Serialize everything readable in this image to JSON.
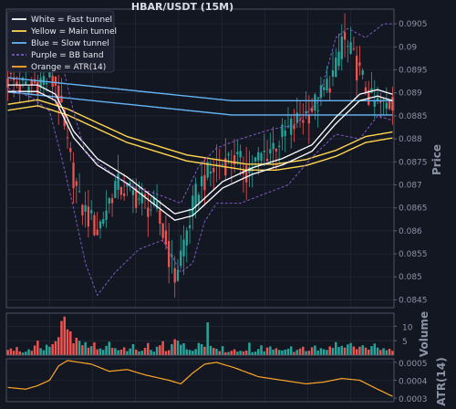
{
  "title": "HBAR/USDT (15M)",
  "colors": {
    "background": "#131722",
    "grid": "#262c3b",
    "axis": "#5a6172",
    "up": "#26a69a",
    "down": "#ef5350",
    "fast": "#ffffff",
    "main": "#ffd54f",
    "slow": "#64b5f6",
    "bb": "#7e57c2",
    "atr": "#ffa726"
  },
  "legend": [
    {
      "label": "White = Fast tunnel",
      "color": "#ffffff",
      "style": "solid"
    },
    {
      "label": "Yellow = Main tunnel",
      "color": "#ffd54f",
      "style": "solid"
    },
    {
      "label": "Blue = Slow tunnel",
      "color": "#64b5f6",
      "style": "solid"
    },
    {
      "label": "Purple = BB band",
      "color": "#7e57c2",
      "style": "dashed"
    },
    {
      "label": "Orange = ATR(14)",
      "color": "#ffa726",
      "style": "solid"
    }
  ],
  "chart_data": [
    {
      "type": "line",
      "subtype": "candlestick",
      "title": "HBAR/USDT (15M)",
      "ylabel": "Price",
      "ylim": [
        0.08435,
        0.09065
      ],
      "yticks": [
        0.0845,
        0.085,
        0.0855,
        0.086,
        0.0865,
        0.087,
        0.0875,
        0.088,
        0.0885,
        0.089,
        0.0895,
        0.09,
        0.0905
      ],
      "grid": true,
      "legend_position": "top-left",
      "n_bars": 130,
      "price_path": [
        [
          0,
          0.0893
        ],
        [
          6,
          0.0891
        ],
        [
          12,
          0.0893
        ],
        [
          16,
          0.0892
        ],
        [
          20,
          0.0878
        ],
        [
          24,
          0.0866
        ],
        [
          30,
          0.086
        ],
        [
          36,
          0.087
        ],
        [
          42,
          0.0868
        ],
        [
          50,
          0.0864
        ],
        [
          56,
          0.085
        ],
        [
          60,
          0.086
        ],
        [
          64,
          0.087
        ],
        [
          70,
          0.0874
        ],
        [
          76,
          0.0876
        ],
        [
          80,
          0.0873
        ],
        [
          88,
          0.0878
        ],
        [
          96,
          0.0883
        ],
        [
          104,
          0.0888
        ],
        [
          110,
          0.0895
        ],
        [
          112,
          0.0902
        ],
        [
          116,
          0.0897
        ],
        [
          122,
          0.0888
        ],
        [
          126,
          0.0887
        ],
        [
          129,
          0.0888
        ]
      ],
      "series": [
        {
          "name": "White = Fast tunnel",
          "values": [
            [
              0,
              0.0891
            ],
            [
              10,
              0.0891
            ],
            [
              16,
              0.0889
            ],
            [
              22,
              0.0881
            ],
            [
              30,
              0.0875
            ],
            [
              40,
              0.0871
            ],
            [
              50,
              0.0866
            ],
            [
              56,
              0.0863
            ],
            [
              62,
              0.0864
            ],
            [
              72,
              0.087
            ],
            [
              82,
              0.0873
            ],
            [
              92,
              0.0875
            ],
            [
              102,
              0.0878
            ],
            [
              110,
              0.0884
            ],
            [
              118,
              0.0889
            ],
            [
              124,
              0.089
            ],
            [
              129,
              0.0889
            ]
          ]
        },
        {
          "name": "Yellow = Main tunnel",
          "values": [
            [
              0,
              0.0887
            ],
            [
              10,
              0.0888
            ],
            [
              20,
              0.0886
            ],
            [
              30,
              0.0883
            ],
            [
              40,
              0.088
            ],
            [
              50,
              0.0878
            ],
            [
              60,
              0.0876
            ],
            [
              70,
              0.0875
            ],
            [
              80,
              0.0874
            ],
            [
              90,
              0.0874
            ],
            [
              100,
              0.0875
            ],
            [
              110,
              0.0877
            ],
            [
              120,
              0.088
            ],
            [
              129,
              0.0881
            ]
          ]
        },
        {
          "name": "Blue = Slow tunnel",
          "values": [
            [
              0,
              0.0893
            ],
            [
              15,
              0.0892
            ],
            [
              30,
              0.0891
            ],
            [
              45,
              0.089
            ],
            [
              60,
              0.0889
            ],
            [
              75,
              0.0888
            ],
            [
              90,
              0.0888
            ],
            [
              105,
              0.0888
            ],
            [
              120,
              0.0888
            ],
            [
              129,
              0.0888
            ]
          ]
        },
        {
          "name": "Purple = BB band",
          "values": [
            [
              0,
              0.0895
            ],
            [
              12,
              0.0896
            ],
            [
              18,
              0.0897
            ],
            [
              22,
              0.0886
            ],
            [
              26,
              0.0877
            ],
            [
              32,
              0.0874
            ],
            [
              40,
              0.087
            ],
            [
              50,
              0.0868
            ],
            [
              58,
              0.0866
            ],
            [
              64,
              0.0874
            ],
            [
              70,
              0.0878
            ],
            [
              78,
              0.088
            ],
            [
              88,
              0.0882
            ],
            [
              96,
              0.0883
            ],
            [
              104,
              0.0888
            ],
            [
              110,
              0.0902
            ],
            [
              114,
              0.0904
            ],
            [
              120,
              0.0902
            ],
            [
              126,
              0.0905
            ],
            [
              129,
              0.0905
            ]
          ]
        },
        {
          "name": "Purple = BB band (lower)",
          "values": [
            [
              0,
              0.0891
            ],
            [
              8,
              0.0889
            ],
            [
              14,
              0.0886
            ],
            [
              18,
              0.0876
            ],
            [
              22,
              0.0865
            ],
            [
              26,
              0.0853
            ],
            [
              30,
              0.0846
            ],
            [
              36,
              0.0851
            ],
            [
              44,
              0.0856
            ],
            [
              52,
              0.0858
            ],
            [
              58,
              0.0851
            ],
            [
              62,
              0.0853
            ],
            [
              66,
              0.0862
            ],
            [
              70,
              0.0866
            ],
            [
              78,
              0.0866
            ],
            [
              86,
              0.0868
            ],
            [
              94,
              0.087
            ],
            [
              102,
              0.0876
            ],
            [
              110,
              0.0881
            ],
            [
              118,
              0.088
            ],
            [
              124,
              0.0885
            ],
            [
              129,
              0.0884
            ]
          ]
        }
      ]
    },
    {
      "type": "bar",
      "ylabel": "Volume",
      "yticks": [
        5,
        10
      ],
      "grid": true,
      "values": [
        1.8,
        2.3,
        1.5,
        2.8,
        1.3,
        0.9,
        1.2,
        2.0,
        1.5,
        3.3,
        5.0,
        2.4,
        1.7,
        3.6,
        2.9,
        3.8,
        4.8,
        6.2,
        11.8,
        13.3,
        8.9,
        8.2,
        4.1,
        6.0,
        4.9,
        3.4,
        4.5,
        2.6,
        3.1,
        4.4,
        2.0,
        2.3,
        1.8,
        3.2,
        4.6,
        2.5,
        2.4,
        1.7,
        1.9,
        2.7,
        1.4,
        2.3,
        3.8,
        1.9,
        1.3,
        1.5,
        2.5,
        4.2,
        1.8,
        1.2,
        2.9,
        3.4,
        4.8,
        1.4,
        1.7,
        3.8,
        5.5,
        5.0,
        3.6,
        4.1,
        2.0,
        1.8,
        1.5,
        2.1,
        4.2,
        3.8,
        2.9,
        11.3,
        3.2,
        2.5,
        2.2,
        1.4,
        3.1,
        1.0,
        1.1,
        1.5,
        2.0,
        1.2,
        1.5,
        1.3,
        1.6,
        4.3,
        1.0,
        1.2,
        2.1,
        3.4,
        1.3,
        2.6,
        3.0,
        1.9,
        2.4,
        1.8,
        1.6,
        1.9,
        2.2,
        3.0,
        1.1,
        1.8,
        2.3,
        2.9,
        1.4,
        1.5,
        2.7,
        3.3,
        1.6,
        2.4,
        2.0,
        1.8,
        3.0,
        2.5,
        4.5,
        2.8,
        3.2,
        2.6,
        3.7,
        4.2,
        3.0,
        2.1,
        2.9,
        3.4,
        2.6,
        1.9,
        3.1,
        4.0,
        2.6,
        1.8,
        2.4,
        1.7,
        2.2,
        1.5
      ]
    },
    {
      "type": "line",
      "ylabel": "ATR(14)",
      "yticks": [
        0.0003,
        0.0004,
        0.0005
      ],
      "ylim": [
        0.00028,
        0.00052
      ],
      "series": [
        {
          "name": "Orange = ATR(14)",
          "values": [
            [
              0,
              0.00036
            ],
            [
              6,
              0.00035
            ],
            [
              10,
              0.00037
            ],
            [
              14,
              0.0004
            ],
            [
              17,
              0.00048
            ],
            [
              20,
              0.00051
            ],
            [
              24,
              0.0005
            ],
            [
              28,
              0.00049
            ],
            [
              34,
              0.00045
            ],
            [
              40,
              0.00046
            ],
            [
              46,
              0.00043
            ],
            [
              54,
              0.0004
            ],
            [
              58,
              0.00038
            ],
            [
              62,
              0.00044
            ],
            [
              66,
              0.00049
            ],
            [
              70,
              0.0005
            ],
            [
              76,
              0.00047
            ],
            [
              84,
              0.00042
            ],
            [
              92,
              0.0004
            ],
            [
              100,
              0.00038
            ],
            [
              106,
              0.00039
            ],
            [
              112,
              0.00041
            ],
            [
              118,
              0.0004
            ],
            [
              124,
              0.00035
            ],
            [
              129,
              0.00031
            ]
          ]
        }
      ]
    }
  ]
}
